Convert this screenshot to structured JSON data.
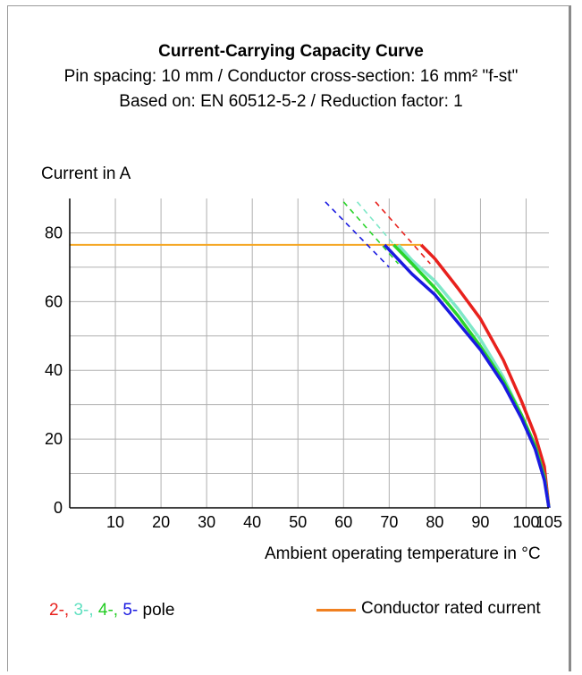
{
  "chart_data": {
    "type": "line",
    "title": "Current-Carrying Capacity Curve",
    "subtitle_1": "Pin spacing: 10 mm / Conductor cross-section: 16 mm² \"f-st\"",
    "subtitle_2": "Based on: EN 60512-5-2 / Reduction factor: 1",
    "ylabel": "Current in A",
    "xlabel": "Ambient operating temperature in °C",
    "xlim": [
      0,
      105
    ],
    "ylim": [
      0,
      90
    ],
    "x_ticks": [
      10,
      20,
      30,
      40,
      50,
      60,
      70,
      80,
      90,
      100,
      105
    ],
    "y_ticks": [
      0,
      20,
      40,
      60,
      80
    ],
    "grid": true,
    "rated_current": {
      "name": "Conductor rated current",
      "value": 76.5,
      "x": [
        0,
        77
      ],
      "color": "#f5a623"
    },
    "series": [
      {
        "name": "2-",
        "color": "#e8211d",
        "dashed": {
          "x": [
            67,
            79
          ],
          "y": [
            89,
            71
          ]
        },
        "solid": {
          "x": [
            77,
            80,
            85,
            90,
            95,
            99,
            102,
            104,
            105
          ],
          "y": [
            76.5,
            72.5,
            64,
            55,
            43,
            31,
            21,
            12,
            0
          ]
        }
      },
      {
        "name": "3-",
        "color": "#7fe8c8",
        "dashed": {
          "x": [
            63,
            74
          ],
          "y": [
            89,
            72
          ]
        },
        "solid": {
          "x": [
            72,
            75,
            80,
            85,
            90,
            95,
            99,
            102,
            104,
            105
          ],
          "y": [
            76.5,
            72,
            66,
            58,
            49,
            38,
            27,
            18,
            9,
            0
          ]
        }
      },
      {
        "name": "4-",
        "color": "#2ad42a",
        "dashed": {
          "x": [
            60,
            72
          ],
          "y": [
            89,
            71
          ]
        },
        "solid": {
          "x": [
            71,
            75,
            80,
            85,
            90,
            95,
            99,
            102,
            104,
            105
          ],
          "y": [
            76.5,
            71,
            64,
            56,
            47,
            37,
            27,
            18,
            9,
            0
          ]
        }
      },
      {
        "name": "5-",
        "color": "#1a1ae0",
        "dashed": {
          "x": [
            56,
            70
          ],
          "y": [
            89,
            70
          ]
        },
        "solid": {
          "x": [
            69,
            75,
            80,
            85,
            90,
            95,
            99,
            102,
            104,
            105
          ],
          "y": [
            76.5,
            68,
            62,
            54,
            46,
            36,
            26,
            17,
            8,
            0
          ]
        }
      }
    ]
  },
  "legend": {
    "poles": [
      {
        "text": "2-",
        "color": "#e8211d"
      },
      {
        "text": "3-",
        "color": "#5fe0c0"
      },
      {
        "text": "4-",
        "color": "#22cc22"
      },
      {
        "text": "5-",
        "color": "#1a1ae0"
      }
    ],
    "pole_suffix": "pole",
    "rated_label": "Conductor rated current"
  }
}
